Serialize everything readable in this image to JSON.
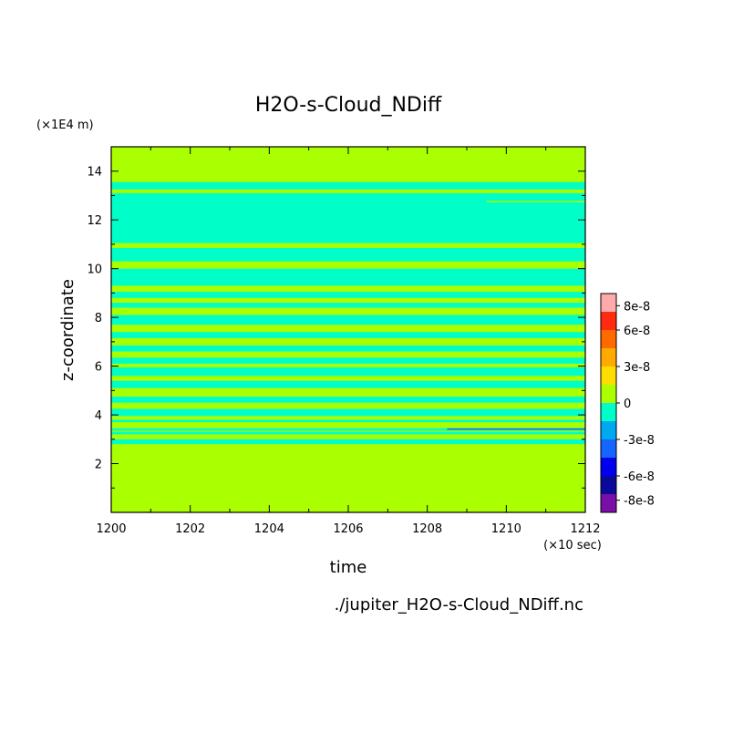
{
  "chart_data": {
    "type": "heatmap",
    "title": "H2O-s-Cloud_NDiff",
    "xlabel": "time",
    "ylabel": "z-coordinate",
    "x_unit": "(×10 sec)",
    "y_unit": "(×1E4 m)",
    "footer": "./jupiter_H2O-s-Cloud_NDiff.nc",
    "xlim": [
      1200,
      1212
    ],
    "ylim": [
      0,
      15
    ],
    "x_ticks": [
      "1200",
      "1202",
      "1204",
      "1206",
      "1208",
      "1210",
      "1212"
    ],
    "x_tick_values": [
      1200,
      1202,
      1204,
      1206,
      1208,
      1210,
      1212
    ],
    "y_ticks": [
      "2",
      "4",
      "6",
      "8",
      "10",
      "12",
      "14"
    ],
    "y_tick_values": [
      2,
      4,
      6,
      8,
      10,
      12,
      14
    ],
    "colorbar": {
      "tick_labels": [
        "8e-8",
        "6e-8",
        "3e-8",
        "0",
        "-3e-8",
        "-6e-8",
        "-8e-8"
      ],
      "tick_values": [
        8e-08,
        6e-08,
        3e-08,
        0,
        -3e-08,
        -6e-08,
        -8e-08
      ],
      "range": [
        -9e-08,
        9e-08
      ],
      "levels": [
        {
          "from": -9e-08,
          "to": -7.5e-08,
          "color": "#7a0fa8"
        },
        {
          "from": -7.5e-08,
          "to": -6e-08,
          "color": "#0a0a9a"
        },
        {
          "from": -6e-08,
          "to": -4.5e-08,
          "color": "#0000ee"
        },
        {
          "from": -4.5e-08,
          "to": -3e-08,
          "color": "#1466ff"
        },
        {
          "from": -3e-08,
          "to": -1.5e-08,
          "color": "#00a8f0"
        },
        {
          "from": -1.5e-08,
          "to": 0,
          "color": "#00ffc8"
        },
        {
          "from": 0,
          "to": 1.5e-08,
          "color": "#aaff00"
        },
        {
          "from": 1.5e-08,
          "to": 3e-08,
          "color": "#ffdd00"
        },
        {
          "from": 3e-08,
          "to": 4.5e-08,
          "color": "#ffaa00"
        },
        {
          "from": 4.5e-08,
          "to": 6e-08,
          "color": "#ff6a00"
        },
        {
          "from": 6e-08,
          "to": 7.5e-08,
          "color": "#ff2a10"
        },
        {
          "from": 7.5e-08,
          "to": 9e-08,
          "color": "#ffaaaa"
        }
      ]
    },
    "background_value_color": "#aaff00",
    "bands": [
      {
        "z0": 2.8,
        "z1": 3.0,
        "color": "#00ffc8"
      },
      {
        "z0": 3.2,
        "z1": 3.3,
        "color": "#00ffc8"
      },
      {
        "z0": 3.35,
        "z1": 3.45,
        "color": "#00ffc8"
      },
      {
        "z0": 3.7,
        "z1": 3.8,
        "color": "#00ffc8"
      },
      {
        "z0": 3.95,
        "z1": 4.25,
        "color": "#00ffc8"
      },
      {
        "z0": 4.5,
        "z1": 4.75,
        "color": "#00ffc8"
      },
      {
        "z0": 5.1,
        "z1": 5.4,
        "color": "#00ffc8"
      },
      {
        "z0": 5.6,
        "z1": 5.95,
        "color": "#00ffc8"
      },
      {
        "z0": 6.1,
        "z1": 6.35,
        "color": "#00ffc8"
      },
      {
        "z0": 6.6,
        "z1": 6.85,
        "color": "#00ffc8"
      },
      {
        "z0": 7.15,
        "z1": 7.4,
        "color": "#00ffc8"
      },
      {
        "z0": 7.7,
        "z1": 8.1,
        "color": "#00ffc8"
      },
      {
        "z0": 8.4,
        "z1": 8.6,
        "color": "#00ffc8"
      },
      {
        "z0": 8.8,
        "z1": 9.05,
        "color": "#00ffc8"
      },
      {
        "z0": 9.3,
        "z1": 10.0,
        "color": "#00ffc8"
      },
      {
        "z0": 10.3,
        "z1": 10.85,
        "color": "#00ffc8"
      },
      {
        "z0": 11.05,
        "z1": 13.1,
        "color": "#00ffc8"
      },
      {
        "z0": 13.25,
        "z1": 13.55,
        "color": "#00ffc8"
      }
    ],
    "thin_lines": [
      {
        "x0": 1208.5,
        "x1": 1212,
        "z": 3.42,
        "color": "#1466ff"
      },
      {
        "x0": 1209.5,
        "x1": 1212,
        "z": 12.75,
        "color": "#aaff00"
      }
    ]
  }
}
